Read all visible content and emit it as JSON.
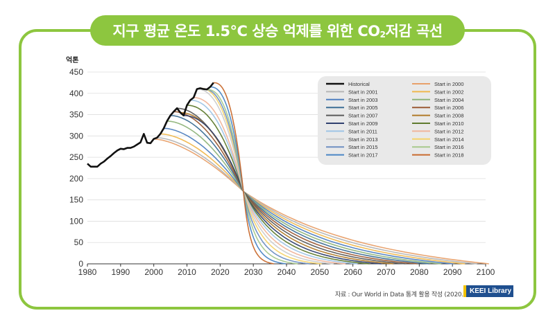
{
  "page": {
    "title_main": "지구 평균 온도 1.5℃ 상승 억제를 위한 CO",
    "title_sub": "2",
    "title_tail": " 저감 곡선",
    "source": "자료 : Our World in Data 통계 활용 작성 (2020.4)",
    "badge": "KEEI Library",
    "colors": {
      "frame": "#8dc63f",
      "badge": "#1f4f8f",
      "badge_accent": "#f2c200"
    }
  },
  "chart_data": {
    "type": "line",
    "ylabel": "억톤",
    "xlabel": "",
    "xlim": [
      1980,
      2100
    ],
    "ylim": [
      0,
      450
    ],
    "xticks": [
      1980,
      1990,
      2000,
      2010,
      2020,
      2030,
      2040,
      2050,
      2060,
      2070,
      2080,
      2090,
      2100
    ],
    "yticks": [
      0,
      50,
      100,
      150,
      200,
      250,
      300,
      350,
      400,
      450
    ],
    "grid": "horizontal",
    "legend_position": "top-right",
    "converge_point": {
      "year": 2027,
      "value": 170
    },
    "historical": {
      "name": "Historical",
      "color": "#111111",
      "x": [
        1980,
        1981,
        1982,
        1983,
        1984,
        1985,
        1986,
        1987,
        1988,
        1989,
        1990,
        1991,
        1992,
        1993,
        1994,
        1995,
        1996,
        1997,
        1998,
        1999,
        2000,
        2001,
        2002,
        2003,
        2004,
        2005,
        2006,
        2007,
        2008,
        2009,
        2010,
        2011,
        2012,
        2013,
        2014,
        2015,
        2016,
        2017,
        2018
      ],
      "y": [
        235,
        228,
        228,
        228,
        235,
        240,
        247,
        253,
        260,
        266,
        270,
        269,
        272,
        272,
        275,
        280,
        285,
        305,
        284,
        283,
        293,
        296,
        305,
        318,
        335,
        348,
        357,
        365,
        355,
        348,
        372,
        384,
        390,
        410,
        412,
        410,
        409,
        415,
        425
      ]
    },
    "series": [
      {
        "name": "Start in 2000",
        "start": 2000,
        "start_value": 293,
        "color": "#e8a06a"
      },
      {
        "name": "Start in 2001",
        "start": 2001,
        "start_value": 296,
        "color": "#b5b5b5"
      },
      {
        "name": "Start in 2002",
        "start": 2002,
        "start_value": 305,
        "color": "#f0b84e"
      },
      {
        "name": "Start in 2003",
        "start": 2003,
        "start_value": 318,
        "color": "#4f7fc0"
      },
      {
        "name": "Start in 2004",
        "start": 2004,
        "start_value": 335,
        "color": "#8fb47a"
      },
      {
        "name": "Start in 2005",
        "start": 2005,
        "start_value": 348,
        "color": "#3c6e95"
      },
      {
        "name": "Start in 2006",
        "start": 2006,
        "start_value": 357,
        "color": "#9b5a34"
      },
      {
        "name": "Start in 2007",
        "start": 2007,
        "start_value": 365,
        "color": "#5a5a5a"
      },
      {
        "name": "Start in 2008",
        "start": 2008,
        "start_value": 355,
        "color": "#b07a28"
      },
      {
        "name": "Start in 2009",
        "start": 2009,
        "start_value": 348,
        "color": "#2f3f6e"
      },
      {
        "name": "Start in 2010",
        "start": 2010,
        "start_value": 372,
        "color": "#5e7a2e"
      },
      {
        "name": "Start in 2011",
        "start": 2011,
        "start_value": 384,
        "color": "#9ec4e6"
      },
      {
        "name": "Start in 2012",
        "start": 2012,
        "start_value": 390,
        "color": "#f0b49a"
      },
      {
        "name": "Start in 2013",
        "start": 2013,
        "start_value": 410,
        "color": "#cccccc"
      },
      {
        "name": "Start in 2014",
        "start": 2014,
        "start_value": 412,
        "color": "#f5d36a"
      },
      {
        "name": "Start in 2015",
        "start": 2015,
        "start_value": 410,
        "color": "#6e8fc2"
      },
      {
        "name": "Start in 2016",
        "start": 2016,
        "start_value": 409,
        "color": "#a7c98c"
      },
      {
        "name": "Start in 2017",
        "start": 2017,
        "start_value": 415,
        "color": "#4a86c5"
      },
      {
        "name": "Start in 2018",
        "start": 2018,
        "start_value": 425,
        "color": "#c86a2e"
      }
    ]
  }
}
